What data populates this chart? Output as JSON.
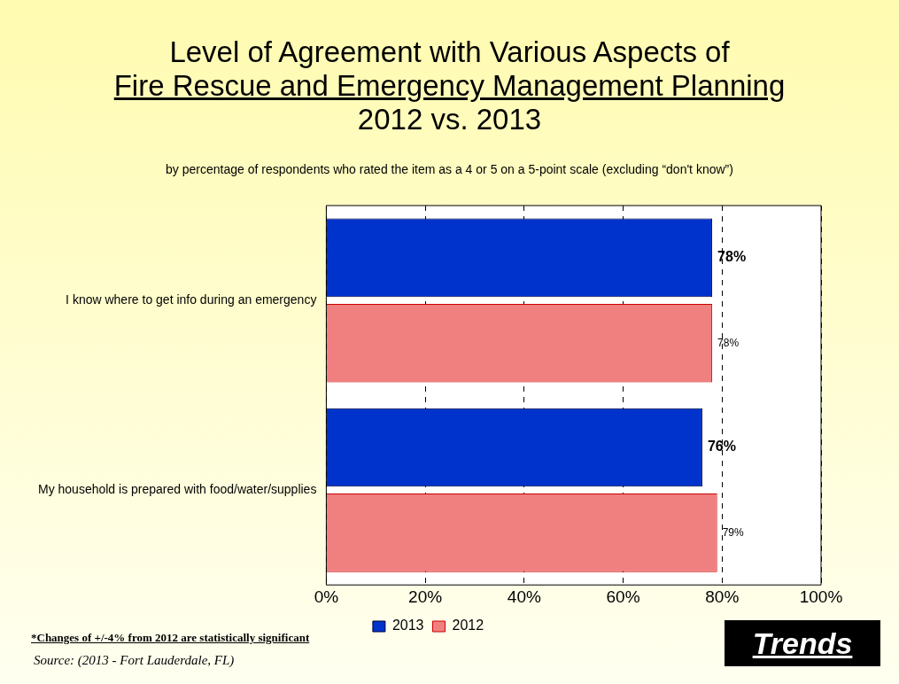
{
  "chart_data": {
    "type": "bar",
    "orientation": "horizontal",
    "title": "Level of Agreement with Various Aspects of\nFire Rescue and Emergency Management Planning\n2012 vs. 2013",
    "subtitle": "by percentage of respondents who rated the item as a 4 or 5 on a 5-point scale (excluding “don't know”)",
    "categories": [
      "I know where to get info during an emergency",
      "My household is prepared with food/water/supplies"
    ],
    "series": [
      {
        "name": "2013",
        "color": "#0033cc",
        "values": [
          78,
          76
        ],
        "value_labels": [
          "78%",
          "76%"
        ]
      },
      {
        "name": "2012",
        "color": "#f08080",
        "values": [
          78,
          79
        ],
        "value_labels": [
          "78%",
          "79%"
        ]
      }
    ],
    "xlim": [
      0,
      100
    ],
    "xticks": [
      {
        "value": 0,
        "label": "0%"
      },
      {
        "value": 20,
        "label": "20%"
      },
      {
        "value": 40,
        "label": "40%"
      },
      {
        "value": 60,
        "label": "60%"
      },
      {
        "value": 80,
        "label": "80%"
      },
      {
        "value": 100,
        "label": "100%"
      }
    ],
    "grid": "x",
    "legend": "bottom",
    "annotations": [
      "*Changes of  +/-4% from 2012 are statistically significant",
      "Source:  (2013 - Fort Lauderdale, FL)",
      "Trends"
    ]
  }
}
